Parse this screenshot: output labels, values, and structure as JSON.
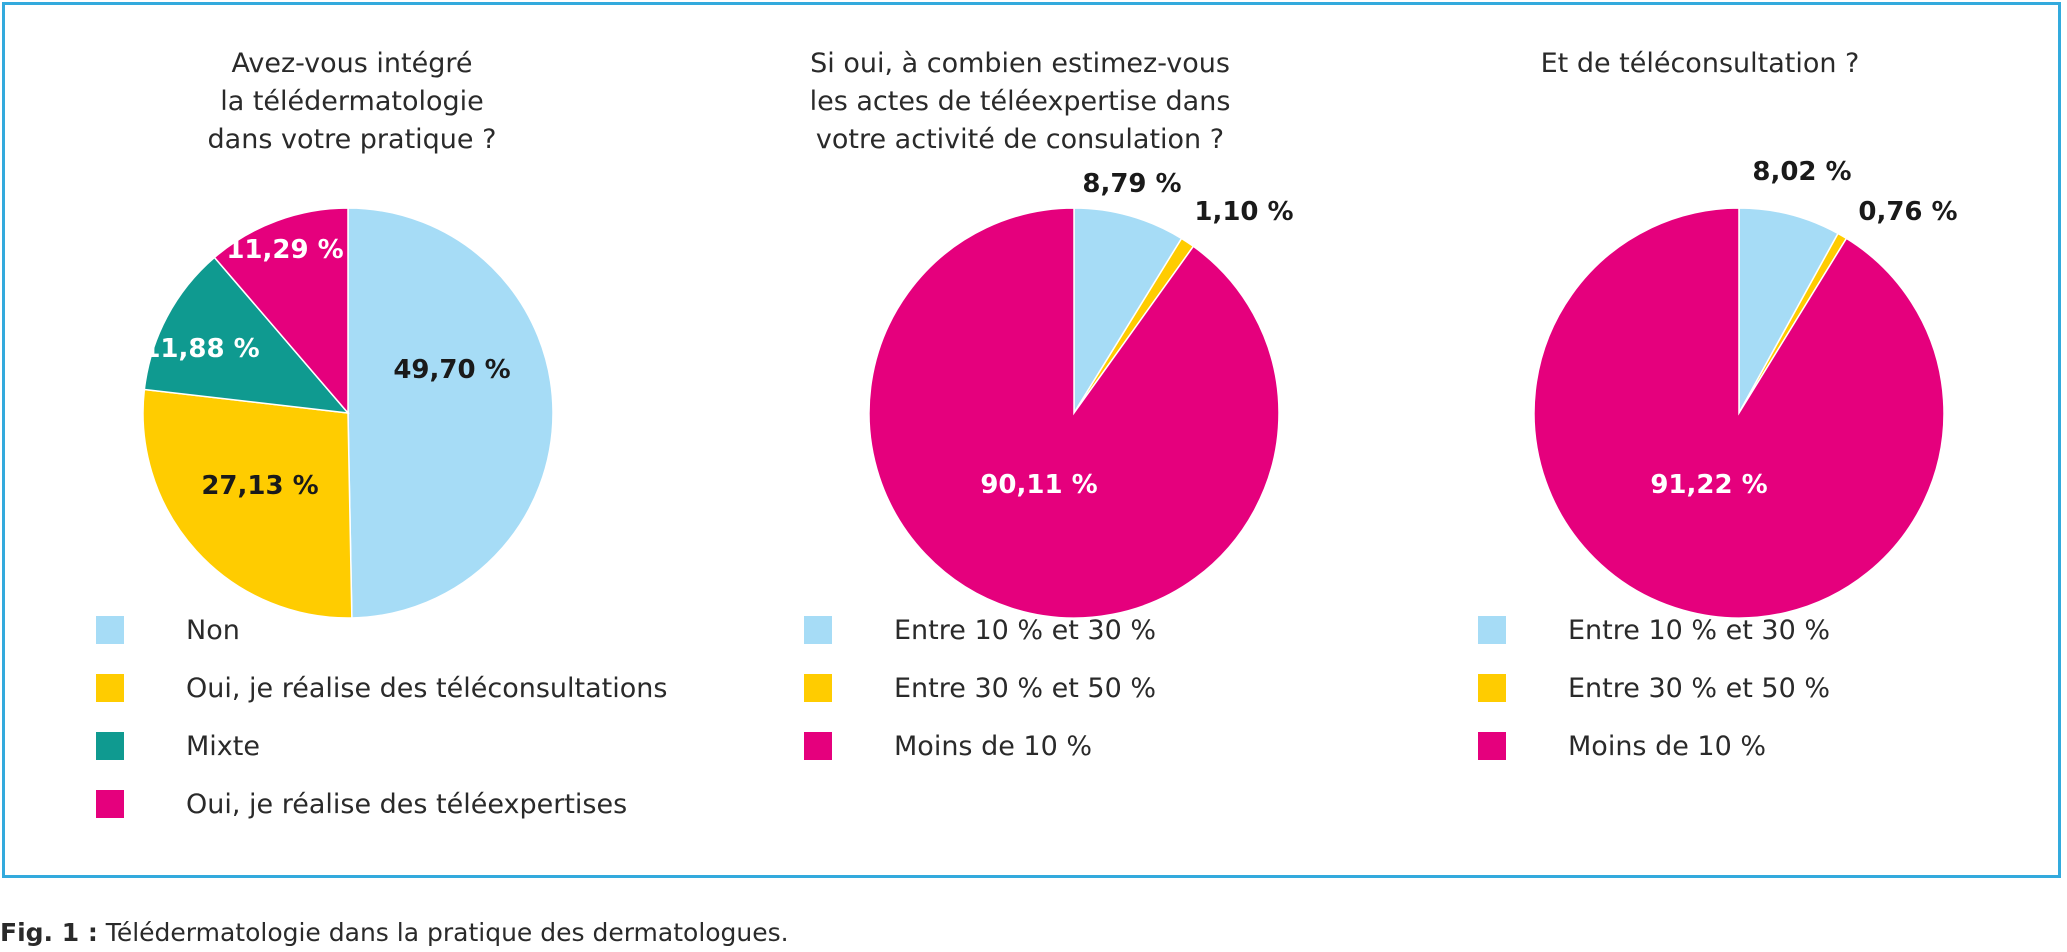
{
  "chart_data": [
    {
      "type": "pie",
      "title": "Avez-vous intégré\nla télédermatologie\ndans votre pratique ?",
      "slices": [
        {
          "label": "Non",
          "value": 49.7,
          "value_label": "49,70 %",
          "color": "#a6dcf6"
        },
        {
          "label": "Oui, je réalise des téléconsultations",
          "value": 27.13,
          "value_label": "27,13 %",
          "color": "#ffcc00"
        },
        {
          "label": "Mixte",
          "value": 11.88,
          "value_label": "11,88 %",
          "color": "#0f9a90"
        },
        {
          "label": "Oui, je réalise des téléexpertises",
          "value": 11.29,
          "value_label": "11,29 %",
          "color": "#e5007d"
        }
      ]
    },
    {
      "type": "pie",
      "title": "Si oui, à combien estimez-vous\nles actes de téléexpertise dans\nvotre activité de consulation ?",
      "slices": [
        {
          "label": "Entre 10 % et 30 %",
          "value": 8.79,
          "value_label": "8,79 %",
          "color": "#a6dcf6"
        },
        {
          "label": "Entre 30 % et 50 %",
          "value": 1.1,
          "value_label": "1,10 %",
          "color": "#ffcc00"
        },
        {
          "label": "Moins de 10 %",
          "value": 90.11,
          "value_label": "90,11 %",
          "color": "#e5007d"
        }
      ]
    },
    {
      "type": "pie",
      "title": "Et de téléconsultation ?",
      "slices": [
        {
          "label": "Entre 10 % et 30 %",
          "value": 8.02,
          "value_label": "8,02 %",
          "color": "#a6dcf6"
        },
        {
          "label": "Entre 30 % et 50 %",
          "value": 0.76,
          "value_label": "0,76 %",
          "color": "#ffcc00"
        },
        {
          "label": "Moins de 10 %",
          "value": 91.22,
          "value_label": "91,22 %",
          "color": "#e5007d"
        }
      ]
    }
  ],
  "caption": {
    "prefix": "Fig. 1 :",
    "text": " Télédermatologie dans la pratique des dermatologues."
  },
  "colors": {
    "frame": "#33aadd"
  }
}
